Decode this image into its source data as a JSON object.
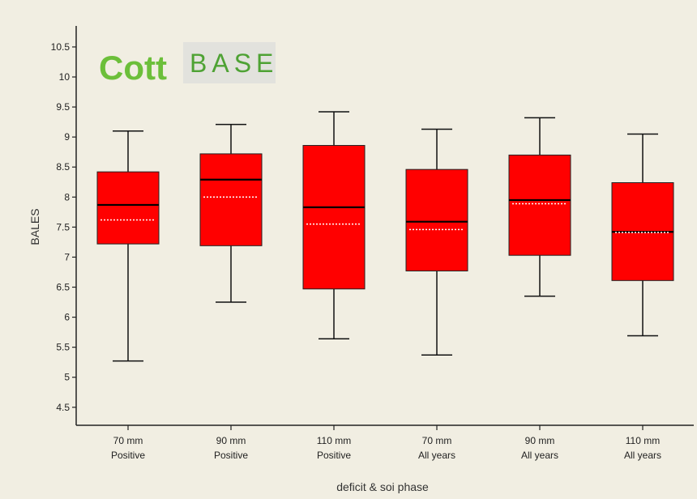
{
  "logo": {
    "part1": "Cott",
    "part2": "BASE"
  },
  "chart_data": {
    "type": "box",
    "xlabel": "deficit & soi phase",
    "ylabel": "BALES",
    "ylim": [
      4.2,
      10.85
    ],
    "yticks": [
      4.5,
      5,
      5.5,
      6,
      6.5,
      7,
      7.5,
      8,
      8.5,
      9,
      9.5,
      10,
      10.5
    ],
    "grid": false,
    "legend": "none",
    "box_color": "#ff0000",
    "categories": [
      {
        "line1": "70 mm",
        "line2": "Positive"
      },
      {
        "line1": "90 mm",
        "line2": "Positive"
      },
      {
        "line1": "110 mm",
        "line2": "Positive"
      },
      {
        "line1": "70 mm",
        "line2": "All years"
      },
      {
        "line1": "90 mm",
        "line2": "All years"
      },
      {
        "line1": "110 mm",
        "line2": "All years"
      }
    ],
    "boxes": [
      {
        "min": 5.27,
        "q1": 7.22,
        "median": 7.87,
        "mean": 7.62,
        "q3": 8.42,
        "max": 9.1
      },
      {
        "min": 6.25,
        "q1": 7.19,
        "median": 8.29,
        "mean": 8.0,
        "q3": 8.72,
        "max": 9.21
      },
      {
        "min": 5.64,
        "q1": 6.47,
        "median": 7.83,
        "mean": 7.55,
        "q3": 8.86,
        "max": 9.42
      },
      {
        "min": 5.37,
        "q1": 6.77,
        "median": 7.59,
        "mean": 7.46,
        "q3": 8.46,
        "max": 9.13
      },
      {
        "min": 6.35,
        "q1": 7.03,
        "median": 7.95,
        "mean": 7.89,
        "q3": 8.7,
        "max": 9.32
      },
      {
        "min": 5.69,
        "q1": 6.61,
        "median": 7.42,
        "mean": 7.41,
        "q3": 8.24,
        "max": 9.05
      }
    ]
  }
}
